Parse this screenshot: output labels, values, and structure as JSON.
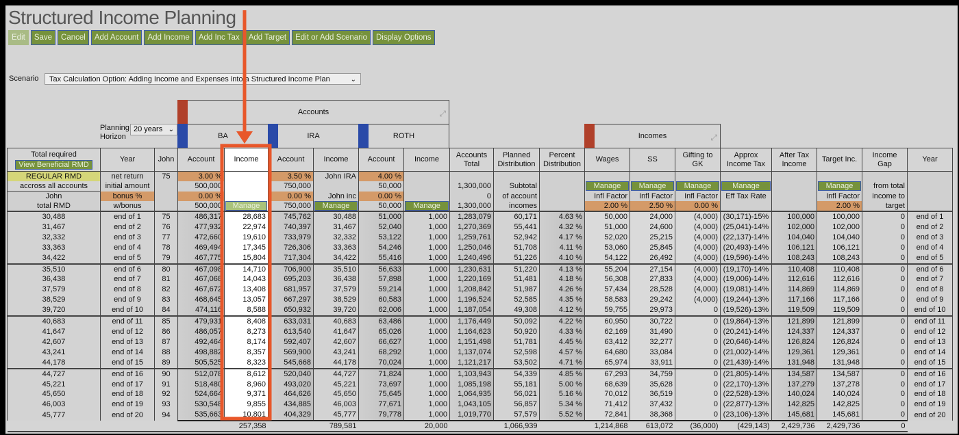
{
  "title": "Structured Income Planning",
  "toolbar": [
    "Edit",
    "Save",
    "Cancel",
    "Add Account",
    "Add Income",
    "Add Inc Tax",
    "Add Target",
    "Edit or Add Scenario",
    "Display Options"
  ],
  "scenario": {
    "label": "Scenario",
    "value": "Tax Calculation Option: Adding Income and Expenses into a Structured Income Plan"
  },
  "planning": {
    "label1": "Planning",
    "label2": "Horizon",
    "value": "20 years"
  },
  "groups": {
    "accounts": "Accounts",
    "incomes": "Incomes",
    "ba": "BA",
    "ira": "IRA",
    "roth": "ROTH"
  },
  "colors": {
    "accent_button": "#76923c",
    "highlight": "#e8572a",
    "input": "#d49a68",
    "rmd": "#d5d679"
  },
  "headers": [
    "Total required",
    "Year",
    "John",
    "Account",
    "Income",
    "Account",
    "Income",
    "Account",
    "Income",
    "Accounts Total",
    "Planned Distribution",
    "Percent Distribution",
    "Wages",
    "SS",
    "Gifting to GK",
    "Approx Income Tax",
    "After Tax Income",
    "Target Inc.",
    "Income Gap",
    "Year"
  ],
  "view_rmd_button": "View Beneficial RMD",
  "params": [
    [
      "REGULAR RMD",
      "net return",
      "75",
      "3.00 %",
      "",
      "3.50 %",
      "John IRA",
      "4.00 %",
      "",
      "",
      "",
      "",
      "",
      "",
      "",
      "",
      "",
      "",
      "",
      ""
    ],
    [
      "accross all accounts",
      "initial amount",
      "",
      "500,000",
      "",
      "750,000",
      "",
      "50,000",
      "",
      "1,300,000",
      "Subtotal",
      "",
      "Manage",
      "Manage",
      "Manage",
      "Manage",
      "",
      "Manage",
      "from total",
      ""
    ],
    [
      "John",
      "bonus %",
      "",
      "0.00 %",
      "",
      "0.00 %",
      "John inc",
      "0.00 %",
      "",
      "0",
      "of account",
      "",
      "Infl Factor",
      "Infl Factor",
      "Infl Factor",
      "Eff Tax Rate",
      "",
      "Infl Factor",
      "income to",
      ""
    ],
    [
      "total RMD",
      "w/bonus",
      "",
      "500,000",
      "Manage",
      "750,000",
      "Manage",
      "50,000",
      "Manage",
      "1,300,000",
      "incomes",
      "",
      "2.00 %",
      "2.50 %",
      "0.00 %",
      "",
      "",
      "2.00 %",
      "target",
      ""
    ]
  ],
  "rows": [
    [
      "30,488",
      "end of 1",
      "75",
      "486,317",
      "28,683",
      "745,762",
      "30,488",
      "51,000",
      "1,000",
      "1,283,079",
      "60,171",
      "4.63 %",
      "50,000",
      "24,000",
      "(4,000)",
      "(30,171)-15%",
      "100,000",
      "100,000",
      "0",
      "end of 1"
    ],
    [
      "31,467",
      "end of 2",
      "76",
      "477,932",
      "22,974",
      "740,397",
      "31,467",
      "52,040",
      "1,000",
      "1,270,369",
      "55,441",
      "4.32 %",
      "51,000",
      "24,600",
      "(4,000)",
      "(25,041)-14%",
      "102,000",
      "102,000",
      "0",
      "end of 2"
    ],
    [
      "32,332",
      "end of 3",
      "77",
      "472,660",
      "19,610",
      "733,979",
      "32,332",
      "53,122",
      "1,000",
      "1,259,761",
      "52,942",
      "4.17 %",
      "52,020",
      "25,215",
      "(4,000)",
      "(22,137)-14%",
      "104,040",
      "104,040",
      "0",
      "end of 3"
    ],
    [
      "33,363",
      "end of 4",
      "78",
      "469,494",
      "17,345",
      "726,306",
      "33,363",
      "54,246",
      "1,000",
      "1,250,046",
      "51,708",
      "4.11 %",
      "53,060",
      "25,845",
      "(4,000)",
      "(20,493)-14%",
      "106,121",
      "106,121",
      "0",
      "end of 4"
    ],
    [
      "34,422",
      "end of 5",
      "79",
      "467,775",
      "15,804",
      "717,304",
      "34,422",
      "55,416",
      "1,000",
      "1,240,496",
      "51,226",
      "4.10 %",
      "54,122",
      "26,492",
      "(4,000)",
      "(19,596)-14%",
      "108,243",
      "108,243",
      "0",
      "end of 5"
    ],
    [
      "35,510",
      "end of 6",
      "80",
      "467,098",
      "14,710",
      "706,900",
      "35,510",
      "56,633",
      "1,000",
      "1,230,631",
      "51,220",
      "4.13 %",
      "55,204",
      "27,154",
      "(4,000)",
      "(19,170)-14%",
      "110,408",
      "110,408",
      "0",
      "end of 6"
    ],
    [
      "36,438",
      "end of 7",
      "81",
      "467,068",
      "14,043",
      "695,203",
      "36,438",
      "57,898",
      "1,000",
      "1,220,169",
      "51,481",
      "4.18 %",
      "56,308",
      "27,833",
      "(4,000)",
      "(19,006)-14%",
      "112,616",
      "112,616",
      "0",
      "end of 7"
    ],
    [
      "37,579",
      "end of 8",
      "82",
      "467,672",
      "13,408",
      "681,957",
      "37,579",
      "59,214",
      "1,000",
      "1,208,842",
      "51,987",
      "4.26 %",
      "57,434",
      "28,528",
      "(4,000)",
      "(19,081)-14%",
      "114,869",
      "114,869",
      "0",
      "end of 8"
    ],
    [
      "38,529",
      "end of 9",
      "83",
      "468,645",
      "13,057",
      "667,297",
      "38,529",
      "60,583",
      "1,000",
      "1,196,524",
      "52,585",
      "4.35 %",
      "58,583",
      "29,242",
      "(4,000)",
      "(19,244)-13%",
      "117,166",
      "117,166",
      "0",
      "end of 9"
    ],
    [
      "39,720",
      "end of 10",
      "84",
      "474,116",
      "8,588",
      "650,932",
      "39,720",
      "62,006",
      "1,000",
      "1,187,054",
      "49,308",
      "4.12 %",
      "59,755",
      "29,973",
      "0",
      "(19,526)-13%",
      "119,509",
      "119,509",
      "0",
      "end of 10"
    ],
    [
      "40,683",
      "end of 11",
      "85",
      "479,931",
      "8,408",
      "633,031",
      "40,683",
      "63,486",
      "1,000",
      "1,176,449",
      "50,092",
      "4.22 %",
      "60,950",
      "30,722",
      "0",
      "(19,864)-13%",
      "121,899",
      "121,899",
      "0",
      "end of 11"
    ],
    [
      "41,647",
      "end of 12",
      "86",
      "486,057",
      "8,273",
      "613,540",
      "41,647",
      "65,026",
      "1,000",
      "1,164,623",
      "50,920",
      "4.33 %",
      "62,169",
      "31,490",
      "0",
      "(20,241)-14%",
      "124,337",
      "124,337",
      "0",
      "end of 12"
    ],
    [
      "42,607",
      "end of 13",
      "87",
      "492,464",
      "8,174",
      "592,407",
      "42,607",
      "66,627",
      "1,000",
      "1,151,498",
      "51,781",
      "4.45 %",
      "63,412",
      "32,277",
      "0",
      "(20,646)-14%",
      "126,824",
      "126,824",
      "0",
      "end of 13"
    ],
    [
      "43,241",
      "end of 14",
      "88",
      "498,882",
      "8,357",
      "569,900",
      "43,241",
      "68,292",
      "1,000",
      "1,137,074",
      "52,598",
      "4.57 %",
      "64,680",
      "33,084",
      "0",
      "(21,002)-14%",
      "129,361",
      "129,361",
      "0",
      "end of 14"
    ],
    [
      "44,178",
      "end of 15",
      "89",
      "505,525",
      "8,323",
      "545,668",
      "44,178",
      "70,024",
      "1,000",
      "1,121,217",
      "53,502",
      "4.71 %",
      "65,974",
      "33,911",
      "0",
      "(21,439)-14%",
      "131,948",
      "131,948",
      "0",
      "end of 15"
    ],
    [
      "44,727",
      "end of 16",
      "90",
      "512,078",
      "8,612",
      "520,040",
      "44,727",
      "71,824",
      "1,000",
      "1,103,943",
      "54,339",
      "4.85 %",
      "67,293",
      "34,759",
      "0",
      "(21,805)-14%",
      "134,587",
      "134,587",
      "0",
      "end of 16"
    ],
    [
      "45,221",
      "end of 17",
      "91",
      "518,480",
      "8,960",
      "493,020",
      "45,221",
      "73,697",
      "1,000",
      "1,085,198",
      "55,181",
      "5.00 %",
      "68,639",
      "35,628",
      "0",
      "(22,170)-13%",
      "137,279",
      "137,278",
      "0",
      "end of 17"
    ],
    [
      "45,650",
      "end of 18",
      "92",
      "524,664",
      "9,371",
      "464,626",
      "45,650",
      "75,645",
      "1,000",
      "1,064,935",
      "56,021",
      "5.16 %",
      "70,012",
      "36,519",
      "0",
      "(22,528)-13%",
      "140,024",
      "140,024",
      "0",
      "end of 18"
    ],
    [
      "46,003",
      "end of 19",
      "93",
      "530,548",
      "9,855",
      "434,885",
      "46,003",
      "77,671",
      "1,000",
      "1,043,105",
      "56,857",
      "5.34 %",
      "71,412",
      "37,432",
      "0",
      "(22,877)-13%",
      "142,825",
      "142,825",
      "0",
      "end of 19"
    ],
    [
      "45,777",
      "end of 20",
      "94",
      "535,663",
      "10,801",
      "404,329",
      "45,777",
      "79,778",
      "1,000",
      "1,019,770",
      "57,579",
      "5.52 %",
      "72,841",
      "38,368",
      "0",
      "(23,106)-13%",
      "145,681",
      "145,681",
      "0",
      "end of 20"
    ]
  ],
  "totals": [
    "",
    "",
    "",
    "",
    "257,358",
    "",
    "789,581",
    "",
    "20,000",
    "",
    "1,066,939",
    "",
    "1,214,868",
    "613,072",
    "(36,000)",
    "(429,143)",
    "2,429,736",
    "2,429,736",
    "0",
    ""
  ]
}
